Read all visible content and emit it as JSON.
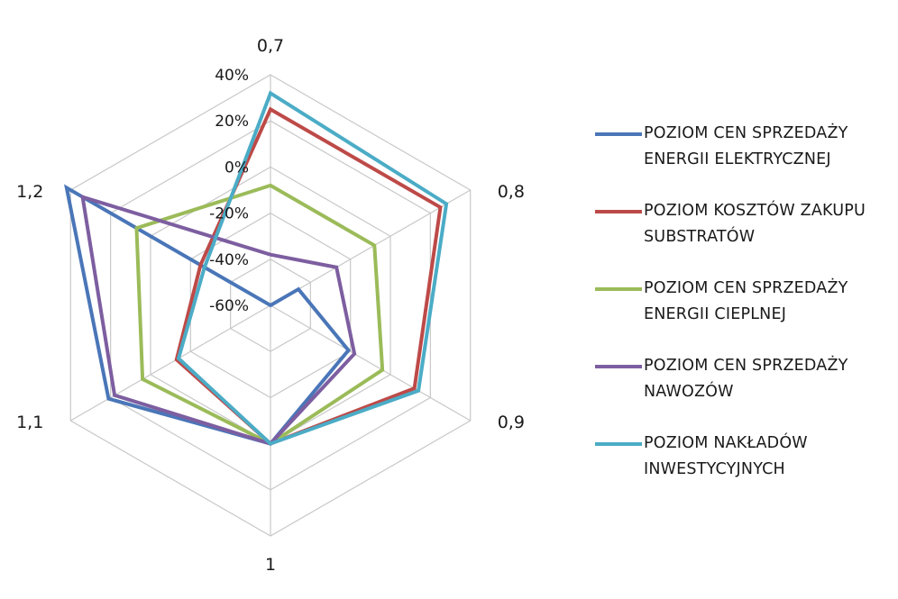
{
  "chart_data": {
    "type": "radar",
    "title": "",
    "categories": [
      "0,7",
      "0,8",
      "0,9",
      "1",
      "1,1",
      "1,2"
    ],
    "rlim": [
      -60,
      40
    ],
    "rticks": [
      -60,
      -40,
      -20,
      0,
      20,
      40
    ],
    "rtick_labels": [
      "-60%",
      "-40%",
      "-20%",
      "0%",
      "20%",
      "40%"
    ],
    "grid": true,
    "legend_position": "right",
    "series": [
      {
        "name": "POZIOM CEN SPRZEDAŻY ENERGII ELEKTRYCZNEJ",
        "color": "#4a76b8",
        "values": [
          -60,
          -46,
          -21,
          0,
          21,
          42
        ]
      },
      {
        "name": "POZIOM KOSZTÓW ZAKUPU SUBSTRATÓW",
        "color": "#bd4a48",
        "values": [
          25,
          25,
          12,
          0,
          -13,
          -25
        ]
      },
      {
        "name": "POZIOM CEN SPRZEDAŻY ENERGII CIEPLNEJ",
        "color": "#9bbb59",
        "values": [
          -8,
          -8,
          -4,
          0,
          4,
          7
        ]
      },
      {
        "name": "POZIOM CEN SPRZEDAŻY NAWOZÓW",
        "color": "#7d5ea0",
        "values": [
          -38,
          -27,
          -18,
          0,
          18,
          34
        ]
      },
      {
        "name": "POZIOM NAKŁADÓW INWESTYCYJNYCH",
        "color": "#4bacc6",
        "values": [
          32,
          28,
          14,
          0,
          -14,
          -27
        ]
      }
    ]
  }
}
